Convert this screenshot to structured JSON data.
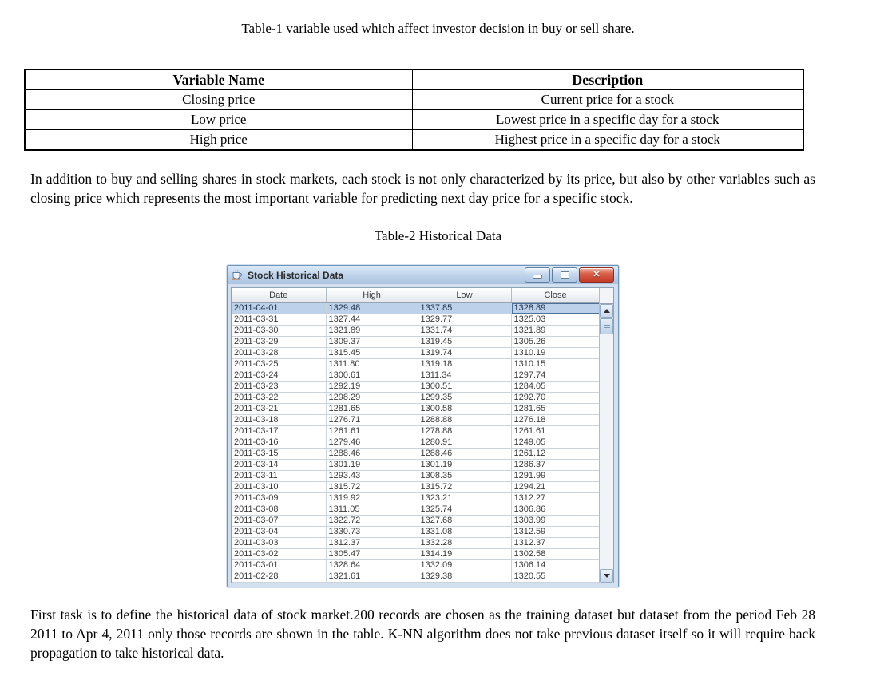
{
  "document": {
    "table1_caption": "Table-1 variable used which affect investor decision in buy or sell share.",
    "table1": {
      "headers": [
        "Variable Name",
        "Description"
      ],
      "rows": [
        [
          "Closing price",
          "Current price for a stock"
        ],
        [
          "Low price",
          "Lowest price in a specific day for a stock"
        ],
        [
          "High price",
          "Highest price in a specific day for a stock"
        ]
      ]
    },
    "paragraph1": "In addition to buy  and selling  shares in stock markets, each stock is not only characterized by its price, but also by other variables such as closing price which represents the most important variable for predicting next day price for a specific stock.",
    "table2_caption": "Table-2 Historical Data",
    "paragraph2": "First task is to define the historical data of stock market.200 records are chosen as the training dataset but dataset from the period Feb 28 2011 to Apr 4, 2011 only those records are shown in the table. K-NN algorithm does not take previous dataset itself so it will require back propagation to take historical data."
  },
  "window": {
    "title": "Stock Historical Data",
    "icons": {
      "app": "java-coffee-cup-icon",
      "minimize": "dash-icon",
      "maximize": "square-icon",
      "close": "x-icon",
      "scroll_up": "triangle-up-icon",
      "scroll_down": "triangle-down-icon"
    },
    "table": {
      "columns": [
        "Date",
        "High",
        "Low",
        "Close"
      ],
      "selected_row_index": 0,
      "rows": [
        [
          "2011-04-01",
          "1329.48",
          "1337.85",
          "1328.89"
        ],
        [
          "2011-03-31",
          "1327.44",
          "1329.77",
          "1325.03"
        ],
        [
          "2011-03-30",
          "1321.89",
          "1331.74",
          "1321.89"
        ],
        [
          "2011-03-29",
          "1309.37",
          "1319.45",
          "1305.26"
        ],
        [
          "2011-03-28",
          "1315.45",
          "1319.74",
          "1310.19"
        ],
        [
          "2011-03-25",
          "1311.80",
          "1319.18",
          "1310.15"
        ],
        [
          "2011-03-24",
          "1300.61",
          "1311.34",
          "1297.74"
        ],
        [
          "2011-03-23",
          "1292.19",
          "1300.51",
          "1284.05"
        ],
        [
          "2011-03-22",
          "1298.29",
          "1299.35",
          "1292.70"
        ],
        [
          "2011-03-21",
          "1281.65",
          "1300.58",
          "1281.65"
        ],
        [
          "2011-03-18",
          "1276.71",
          "1288.88",
          "1276.18"
        ],
        [
          "2011-03-17",
          "1261.61",
          "1278.88",
          "1261.61"
        ],
        [
          "2011-03-16",
          "1279.46",
          "1280.91",
          "1249.05"
        ],
        [
          "2011-03-15",
          "1288.46",
          "1288.46",
          "1261.12"
        ],
        [
          "2011-03-14",
          "1301.19",
          "1301.19",
          "1286.37"
        ],
        [
          "2011-03-11",
          "1293.43",
          "1308.35",
          "1291.99"
        ],
        [
          "2011-03-10",
          "1315.72",
          "1315.72",
          "1294.21"
        ],
        [
          "2011-03-09",
          "1319.92",
          "1323.21",
          "1312.27"
        ],
        [
          "2011-03-08",
          "1311.05",
          "1325.74",
          "1306.86"
        ],
        [
          "2011-03-07",
          "1322.72",
          "1327.68",
          "1303.99"
        ],
        [
          "2011-03-04",
          "1330.73",
          "1331.08",
          "1312.59"
        ],
        [
          "2011-03-03",
          "1312.37",
          "1332.28",
          "1312.37"
        ],
        [
          "2011-03-02",
          "1305.47",
          "1314.19",
          "1302.58"
        ],
        [
          "2011-03-01",
          "1328.64",
          "1332.09",
          "1306.14"
        ],
        [
          "2011-02-28",
          "1321.61",
          "1329.38",
          "1320.55"
        ]
      ]
    }
  },
  "colors": {
    "titlebar": "#bdd2ea",
    "window_border": "#6f94ba",
    "selection": "#bdd2ea",
    "close_button": "#c23a26",
    "grid_line": "#cdd3da"
  }
}
